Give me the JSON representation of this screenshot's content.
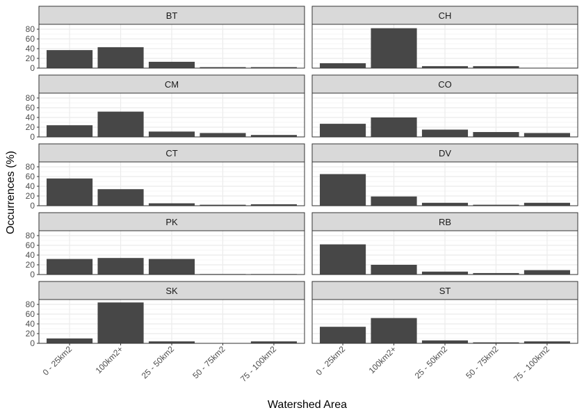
{
  "chart_data": {
    "type": "bar",
    "xlabel": "Watershed Area",
    "ylabel": "Occurrences (%)",
    "ylim": [
      0,
      90
    ],
    "yticks": [
      0,
      20,
      40,
      60,
      80
    ],
    "categories": [
      "0 - 25km2",
      "100km2+",
      "25 - 50km2",
      "50 - 75km2",
      "75 - 100km2"
    ],
    "panels": [
      {
        "name": "BT",
        "values": [
          37,
          43,
          13,
          2,
          2
        ]
      },
      {
        "name": "CH",
        "values": [
          10,
          82,
          4,
          4,
          0
        ]
      },
      {
        "name": "CM",
        "values": [
          24,
          52,
          11,
          8,
          4
        ]
      },
      {
        "name": "CO",
        "values": [
          27,
          40,
          15,
          10,
          8
        ]
      },
      {
        "name": "CT",
        "values": [
          56,
          34,
          5,
          2,
          3
        ]
      },
      {
        "name": "DV",
        "values": [
          65,
          19,
          6,
          2,
          6
        ]
      },
      {
        "name": "PK",
        "values": [
          32,
          34,
          32,
          1,
          1
        ]
      },
      {
        "name": "RB",
        "values": [
          62,
          20,
          6,
          3,
          9
        ]
      },
      {
        "name": "SK",
        "values": [
          10,
          84,
          4,
          0,
          4
        ]
      },
      {
        "name": "ST",
        "values": [
          34,
          52,
          6,
          2,
          4
        ]
      }
    ],
    "grid": true,
    "colors": {
      "bar": "#474747",
      "strip_fill": "#d9d9d9",
      "panel_border": "#333333",
      "grid_major": "#ebebeb",
      "grid_minor": "#f5f5f5"
    }
  }
}
